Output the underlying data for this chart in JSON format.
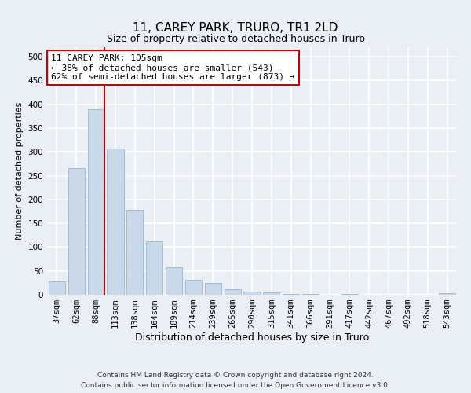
{
  "title": "11, CAREY PARK, TRURO, TR1 2LD",
  "subtitle": "Size of property relative to detached houses in Truro",
  "xlabel": "Distribution of detached houses by size in Truro",
  "ylabel": "Number of detached properties",
  "categories": [
    "37sqm",
    "62sqm",
    "88sqm",
    "113sqm",
    "138sqm",
    "164sqm",
    "189sqm",
    "214sqm",
    "239sqm",
    "265sqm",
    "290sqm",
    "315sqm",
    "341sqm",
    "366sqm",
    "391sqm",
    "417sqm",
    "442sqm",
    "467sqm",
    "492sqm",
    "518sqm",
    "543sqm"
  ],
  "values": [
    28,
    265,
    390,
    307,
    178,
    113,
    57,
    32,
    24,
    12,
    7,
    5,
    1,
    1,
    0,
    1,
    0,
    0,
    0,
    0,
    3
  ],
  "bar_color": "#c9d9ea",
  "bar_edgecolor": "#9ab4cc",
  "vline_color": "#cc0000",
  "annotation_line1": "11 CAREY PARK: 105sqm",
  "annotation_line2": "← 38% of detached houses are smaller (543)",
  "annotation_line3": "62% of semi-detached houses are larger (873) →",
  "annotation_box_edgecolor": "#cc0000",
  "annotation_box_facecolor": "white",
  "ylim": [
    0,
    520
  ],
  "yticks": [
    0,
    50,
    100,
    150,
    200,
    250,
    300,
    350,
    400,
    450,
    500
  ],
  "background_color": "#eaeff5",
  "grid_color": "white",
  "title_fontsize": 11,
  "subtitle_fontsize": 9,
  "xlabel_fontsize": 9,
  "ylabel_fontsize": 8,
  "tick_fontsize": 7.5,
  "footer_text": "Contains HM Land Registry data © Crown copyright and database right 2024.\nContains public sector information licensed under the Open Government Licence v3.0."
}
